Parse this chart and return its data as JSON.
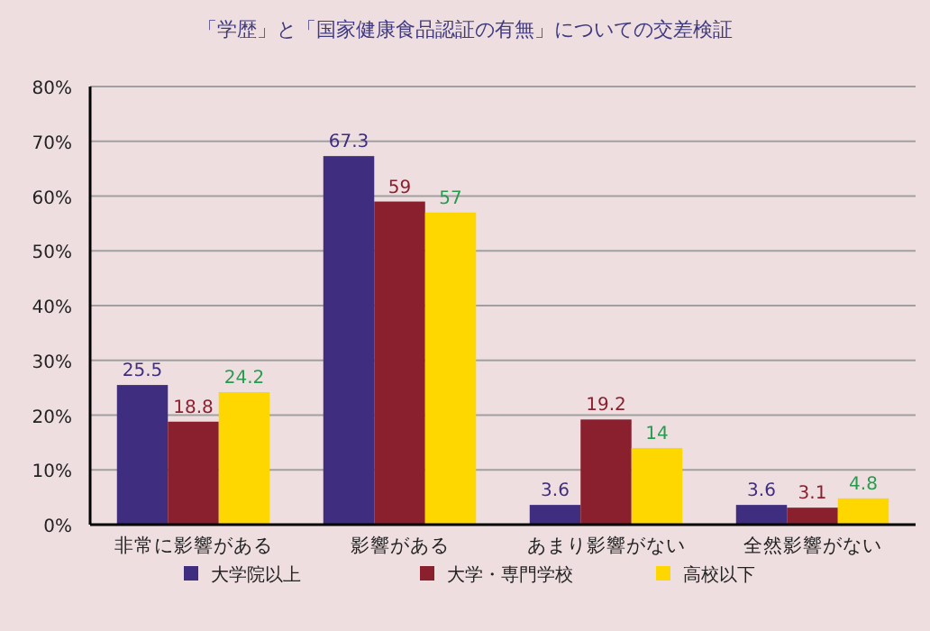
{
  "chart_data": {
    "type": "bar",
    "title": "「学歴」と「国家健康食品認証の有無」についての交差検証",
    "categories": [
      "非常に影響がある",
      "影響がある",
      "あまり影響がない",
      "全然影響がない"
    ],
    "series": [
      {
        "name": "大学院以上",
        "color": "#3f2d80",
        "values": [
          25.5,
          67.3,
          3.6,
          3.6
        ]
      },
      {
        "name": "大学・専門学校",
        "color": "#8a1f2e",
        "values": [
          18.8,
          59,
          19.2,
          3.1
        ]
      },
      {
        "name": "高校以下",
        "color": "#ffd700",
        "values": [
          24.2,
          57,
          14,
          4.8
        ]
      }
    ],
    "ylim": [
      0,
      80
    ],
    "yticks": [
      {
        "value": 0,
        "label": "0%"
      },
      {
        "value": 10,
        "label": "10%"
      },
      {
        "value": 20,
        "label": "20%"
      },
      {
        "value": 30,
        "label": "30%"
      },
      {
        "value": 40,
        "label": "40%"
      },
      {
        "value": 50,
        "label": "50%"
      },
      {
        "value": 60,
        "label": "60%"
      },
      {
        "value": 70,
        "label": "70%"
      },
      {
        "value": 80,
        "label": "80%"
      }
    ],
    "grid": "y",
    "data_labels": true,
    "legend": "bottom"
  }
}
